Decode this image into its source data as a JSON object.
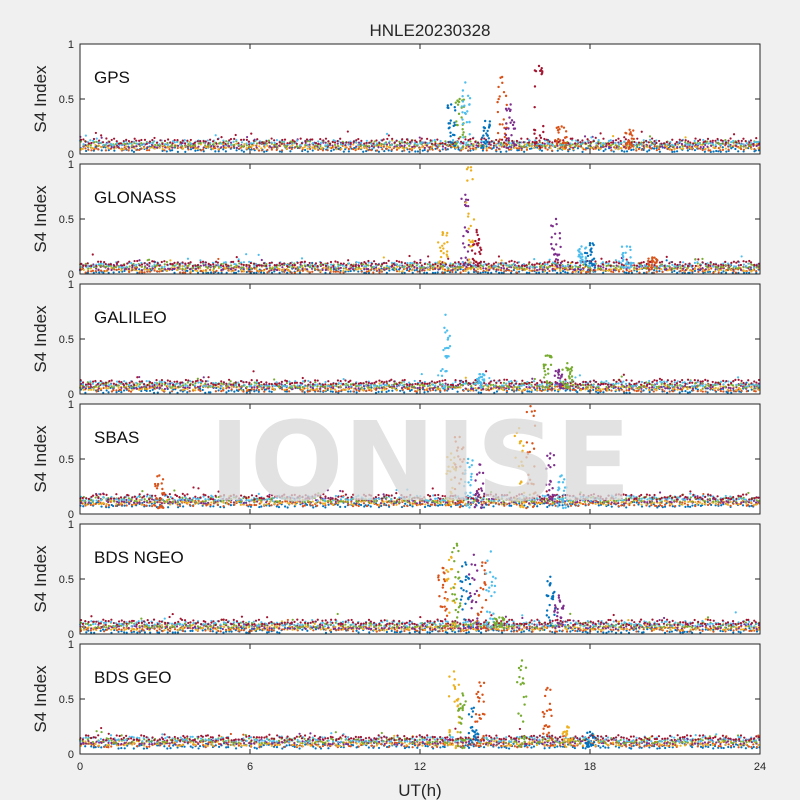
{
  "chart_data": {
    "type": "scatter",
    "title": "HNLE20230328",
    "xlabel": "UT(h)",
    "ylabel": "S4 Index",
    "xlim": [
      0,
      24
    ],
    "ylim": [
      0,
      1
    ],
    "xticks": [
      0,
      6,
      12,
      18,
      24
    ],
    "yticks": [
      0,
      0.5,
      1
    ],
    "ytick_labels": [
      "0",
      "0.5",
      "1"
    ],
    "watermark": "IONISE",
    "colors": [
      "#0072bd",
      "#d95319",
      "#edb120",
      "#7e2f8e",
      "#77ac30",
      "#4dbeee",
      "#a2142f"
    ],
    "panels": [
      {
        "name": "GPS",
        "baseline": 0.08,
        "spikes": [
          {
            "x": 13.1,
            "y_max": 0.45,
            "series": 0
          },
          {
            "x": 13.4,
            "y_max": 0.5,
            "series": 4
          },
          {
            "x": 13.6,
            "y_max": 0.65,
            "series": 5
          },
          {
            "x": 14.3,
            "y_max": 0.3,
            "series": 0
          },
          {
            "x": 14.9,
            "y_max": 0.7,
            "series": 1
          },
          {
            "x": 15.2,
            "y_max": 0.45,
            "series": 3
          },
          {
            "x": 16.2,
            "y_max": 0.8,
            "series": 6
          },
          {
            "x": 17.0,
            "y_max": 0.25,
            "series": 1
          },
          {
            "x": 19.4,
            "y_max": 0.22,
            "series": 1
          }
        ]
      },
      {
        "name": "GLONASS",
        "baseline": 0.06,
        "spikes": [
          {
            "x": 12.8,
            "y_max": 0.38,
            "series": 2
          },
          {
            "x": 13.6,
            "y_max": 0.72,
            "series": 3
          },
          {
            "x": 13.8,
            "y_max": 0.97,
            "series": 2
          },
          {
            "x": 14.0,
            "y_max": 0.4,
            "series": 6
          },
          {
            "x": 16.8,
            "y_max": 0.5,
            "series": 3
          },
          {
            "x": 17.7,
            "y_max": 0.25,
            "series": 5
          },
          {
            "x": 18.0,
            "y_max": 0.28,
            "series": 0
          },
          {
            "x": 19.3,
            "y_max": 0.25,
            "series": 5
          },
          {
            "x": 20.2,
            "y_max": 0.15,
            "series": 1
          }
        ]
      },
      {
        "name": "GALILEO",
        "baseline": 0.07,
        "spikes": [
          {
            "x": 12.9,
            "y_max": 0.72,
            "series": 5
          },
          {
            "x": 14.1,
            "y_max": 0.18,
            "series": 5
          },
          {
            "x": 16.5,
            "y_max": 0.35,
            "series": 4
          },
          {
            "x": 16.9,
            "y_max": 0.22,
            "series": 3
          },
          {
            "x": 17.2,
            "y_max": 0.28,
            "series": 4
          }
        ]
      },
      {
        "name": "SBAS",
        "baseline": 0.12,
        "spikes": [
          {
            "x": 13.1,
            "y_max": 0.55,
            "series": 2
          },
          {
            "x": 13.4,
            "y_max": 0.7,
            "series": 1
          },
          {
            "x": 13.7,
            "y_max": 0.5,
            "series": 5
          },
          {
            "x": 14.1,
            "y_max": 0.45,
            "series": 3
          },
          {
            "x": 15.5,
            "y_max": 0.78,
            "series": 2
          },
          {
            "x": 15.9,
            "y_max": 0.98,
            "series": 1
          },
          {
            "x": 16.6,
            "y_max": 0.55,
            "series": 3
          },
          {
            "x": 17.0,
            "y_max": 0.35,
            "series": 5
          },
          {
            "x": 2.8,
            "y_max": 0.35,
            "series": 1
          }
        ]
      },
      {
        "name": "BDS NGEO",
        "baseline": 0.07,
        "spikes": [
          {
            "x": 12.8,
            "y_max": 0.6,
            "series": 1
          },
          {
            "x": 13.1,
            "y_max": 0.7,
            "series": 2
          },
          {
            "x": 13.3,
            "y_max": 0.82,
            "series": 4
          },
          {
            "x": 13.6,
            "y_max": 0.65,
            "series": 0
          },
          {
            "x": 13.9,
            "y_max": 0.72,
            "series": 3
          },
          {
            "x": 14.2,
            "y_max": 0.65,
            "series": 1
          },
          {
            "x": 14.5,
            "y_max": 0.75,
            "series": 5
          },
          {
            "x": 14.8,
            "y_max": 0.15,
            "series": 4
          },
          {
            "x": 16.6,
            "y_max": 0.52,
            "series": 0
          },
          {
            "x": 16.9,
            "y_max": 0.35,
            "series": 3
          }
        ]
      },
      {
        "name": "BDS GEO",
        "baseline": 0.11,
        "spikes": [
          {
            "x": 13.2,
            "y_max": 0.75,
            "series": 2
          },
          {
            "x": 13.5,
            "y_max": 0.55,
            "series": 4
          },
          {
            "x": 13.9,
            "y_max": 0.42,
            "series": 0
          },
          {
            "x": 14.1,
            "y_max": 0.65,
            "series": 1
          },
          {
            "x": 15.6,
            "y_max": 0.85,
            "series": 4
          },
          {
            "x": 16.5,
            "y_max": 0.6,
            "series": 1
          },
          {
            "x": 17.2,
            "y_max": 0.25,
            "series": 2
          },
          {
            "x": 18.0,
            "y_max": 0.2,
            "series": 0
          }
        ]
      }
    ]
  }
}
